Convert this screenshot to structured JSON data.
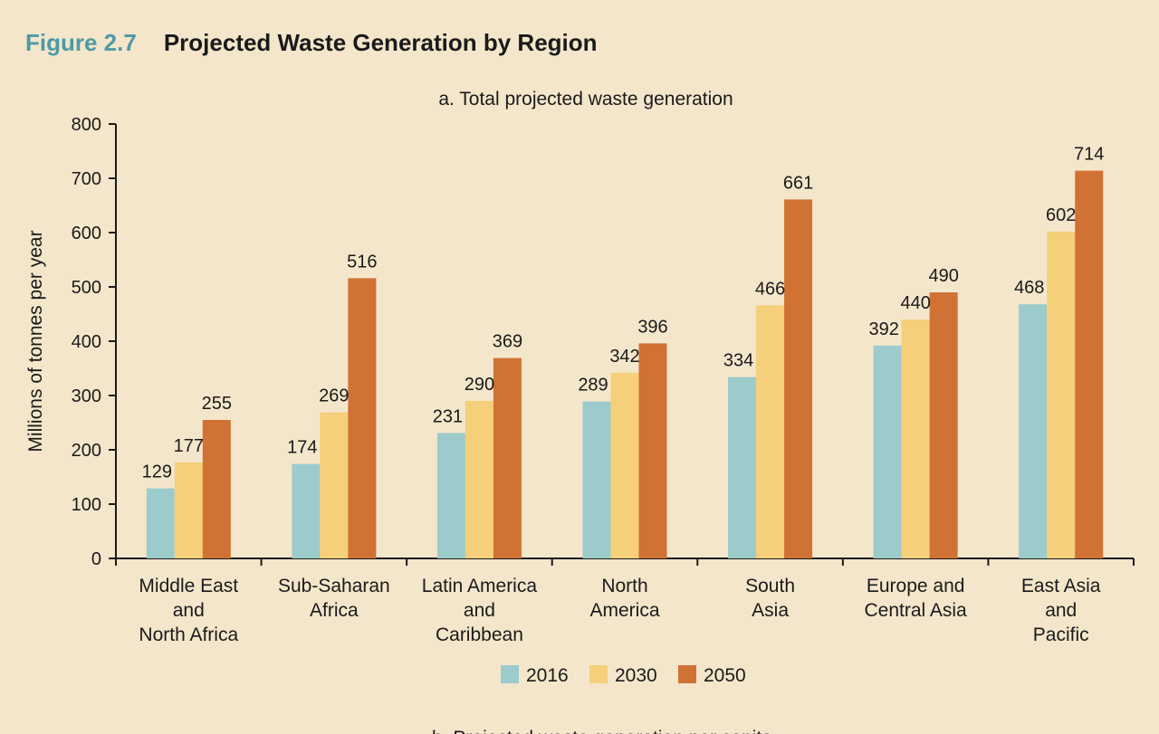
{
  "figure": {
    "number": "Figure 2.7",
    "title": "Projected Waste Generation by Region"
  },
  "colors": {
    "background": "#f4e6cb",
    "figure_number": "#4d9aa6",
    "series_2016": "#9ccbcb",
    "series_2030": "#f6cf7b",
    "series_2050": "#d07234"
  },
  "chart_data": {
    "type": "bar",
    "title": "a. Total projected waste generation",
    "xlabel": "",
    "ylabel": "Millions of tonnes per year",
    "ylim": [
      0,
      800
    ],
    "yticks": [
      0,
      100,
      200,
      300,
      400,
      500,
      600,
      700,
      800
    ],
    "grid": false,
    "legend_position": "bottom",
    "categories": [
      [
        "Middle East",
        "and",
        "North Africa"
      ],
      [
        "Sub-Saharan",
        "Africa"
      ],
      [
        "Latin America",
        "and",
        "Caribbean"
      ],
      [
        "North",
        "America"
      ],
      [
        "South",
        "Asia"
      ],
      [
        "Europe and",
        "Central Asia"
      ],
      [
        "East Asia",
        "and",
        "Pacific"
      ]
    ],
    "series": [
      {
        "name": "2016",
        "color": "#9ccbcb",
        "values": [
          129,
          174,
          231,
          289,
          334,
          392,
          468
        ]
      },
      {
        "name": "2030",
        "color": "#f6cf7b",
        "values": [
          177,
          269,
          290,
          342,
          466,
          440,
          602
        ]
      },
      {
        "name": "2050",
        "color": "#d07234",
        "values": [
          255,
          516,
          369,
          396,
          661,
          490,
          714
        ]
      }
    ]
  },
  "next_panel_title": "b. Projected waste generation per capita"
}
